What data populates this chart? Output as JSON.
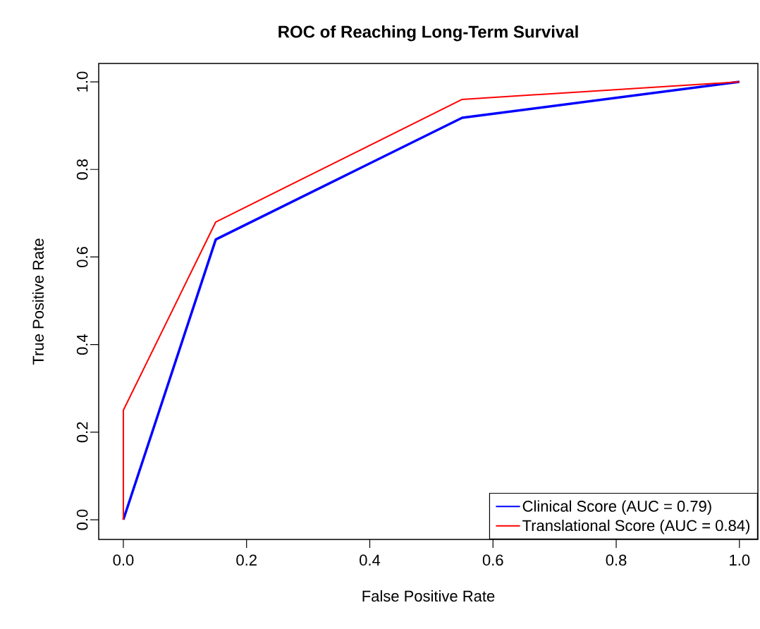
{
  "chart_data": {
    "type": "line",
    "title": "ROC of Reaching Long-Term Survival",
    "xlabel": "False Positive Rate",
    "ylabel": "True Positive Rate",
    "series": [
      {
        "name": "Clinical Score (AUC = 0.79)",
        "color": "#0000ff",
        "x": [
          0,
          0.15,
          0.55,
          1
        ],
        "values": [
          0,
          0.64,
          0.918,
          1
        ]
      },
      {
        "name": "Translational Score (AUC = 0.84)",
        "color": "#ff0000",
        "x": [
          0,
          0,
          0.15,
          0.55,
          1
        ],
        "values": [
          0,
          0.25,
          0.68,
          0.96,
          1
        ]
      }
    ],
    "xlim": [
      -0.04,
      1.03
    ],
    "ylim": [
      -0.045,
      1.042
    ],
    "xticks": [
      {
        "value": 0,
        "label": "0.0"
      },
      {
        "value": 0.2,
        "label": "0.2"
      },
      {
        "value": 0.4,
        "label": "0.4"
      },
      {
        "value": 0.6,
        "label": "0.6"
      },
      {
        "value": 0.8,
        "label": "0.8"
      },
      {
        "value": 1,
        "label": "1.0"
      }
    ],
    "yticks": [
      {
        "value": 0,
        "label": "0.0"
      },
      {
        "value": 0.2,
        "label": "0.2"
      },
      {
        "value": 0.4,
        "label": "0.4"
      },
      {
        "value": 0.6,
        "label": "0.6"
      },
      {
        "value": 0.8,
        "label": "0.8"
      },
      {
        "value": 1,
        "label": "1.0"
      }
    ],
    "legend": "bottom right"
  }
}
